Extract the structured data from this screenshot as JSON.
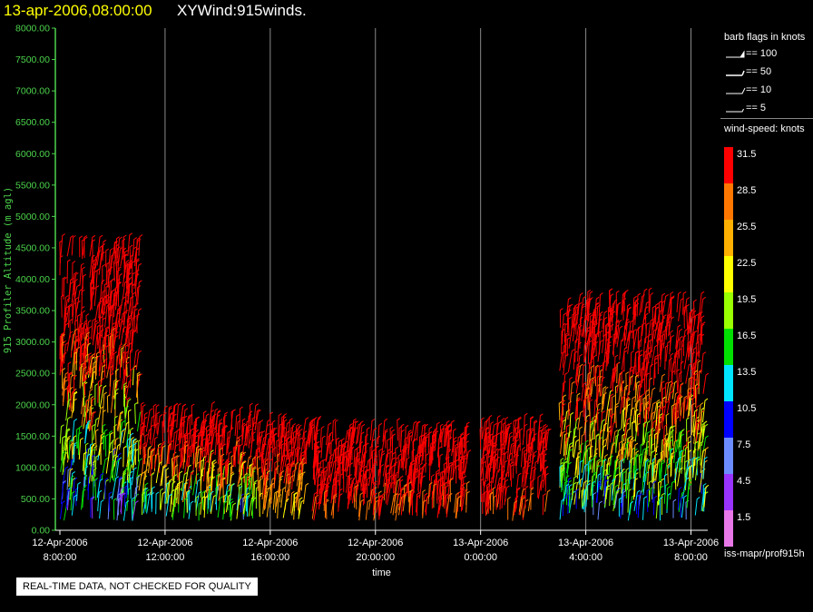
{
  "header": {
    "date": "13-apr-2006,08:00:00",
    "name": "XYWind:915winds."
  },
  "colors": {
    "axis": "#4cd44c",
    "grid": "#8a8a8a",
    "speed_bins": [
      "#e877e8",
      "#9933ff",
      "#6b8cff",
      "#0000ff",
      "#00e5ff",
      "#00e000",
      "#9aff00",
      "#ffff00",
      "#ffb000",
      "#ff7700",
      "#ff0000"
    ]
  },
  "legend": {
    "flags_title": "barb flags in knots",
    "flags": [
      {
        "label": "== 100",
        "icon": "barb-flag-icon"
      },
      {
        "label": "== 50",
        "icon": "barb-pennant-icon"
      },
      {
        "label": "== 10",
        "icon": "barb-full-icon"
      },
      {
        "label": "== 5",
        "icon": "barb-half-icon"
      }
    ],
    "speed_title": "wind-speed: knots",
    "speed_labels": [
      "31.5",
      "28.5",
      "25.5",
      "22.5",
      "19.5",
      "16.5",
      "13.5",
      "10.5",
      "7.5",
      "4.5",
      "1.5"
    ]
  },
  "footer": {
    "path": "iss-mapr/prof915h",
    "notice": "REAL-TIME DATA, NOT CHECKED FOR QUALITY"
  },
  "chart_data": {
    "type": "scatter",
    "title": "XYWind:915winds.",
    "xlabel": "time",
    "ylabel": "915 Profiler Altitude (m agl)",
    "ylim": [
      0,
      8000
    ],
    "yticks": [
      "0.00",
      "500.00",
      "1000.00",
      "1500.00",
      "2000.00",
      "2500.00",
      "3000.00",
      "3500.00",
      "4000.00",
      "4500.00",
      "5000.00",
      "5500.00",
      "6000.00",
      "6500.00",
      "7000.00",
      "7500.00",
      "8000.00"
    ],
    "xticks": [
      {
        "date": "12-Apr-2006",
        "time": "8:00:00"
      },
      {
        "date": "12-Apr-2006",
        "time": "12:00:00"
      },
      {
        "date": "12-Apr-2006",
        "time": "16:00:00"
      },
      {
        "date": "12-Apr-2006",
        "time": "20:00:00"
      },
      {
        "date": "13-Apr-2006",
        "time": "0:00:00"
      },
      {
        "date": "13-Apr-2006",
        "time": "4:00:00"
      },
      {
        "date": "13-Apr-2006",
        "time": "8:00:00"
      }
    ],
    "xlim": [
      "12-Apr-2006 8:00:00",
      "13-Apr-2006 8:30:00"
    ],
    "grid": "vertical lines at each time tick",
    "series": [
      {
        "name": "wind-speed: knots",
        "approximate_data_regions": [
          {
            "from": "12-Apr-2006 8:00:00",
            "to": "12-Apr-2006 11:00:00",
            "altitude_m": [
              0,
              4400
            ],
            "speed_range_knots": [
              1.5,
              31.5
            ]
          },
          {
            "from": "12-Apr-2006 11:00:00",
            "to": "12-Apr-2006 15:30:00",
            "altitude_m": [
              0,
              1700
            ],
            "speed_range_knots": [
              4.5,
              31.5
            ]
          },
          {
            "from": "12-Apr-2006 15:30:00",
            "to": "12-Apr-2006 17:30:00",
            "altitude_m": [
              0,
              1500
            ],
            "speed_range_knots": [
              19.5,
              31.5
            ]
          },
          {
            "from": "12-Apr-2006 17:30:00",
            "to": "12-Apr-2006 23:30:00",
            "altitude_m": [
              0,
              1450
            ],
            "speed_range_knots": [
              28.5,
              31.5
            ]
          },
          {
            "from": "13-Apr-2006 0:00:00",
            "to": "13-Apr-2006 2:30:00",
            "altitude_m": [
              0,
              1500
            ],
            "speed_range_knots": [
              28.5,
              31.5
            ]
          },
          {
            "from": "13-Apr-2006 3:00:00",
            "to": "13-Apr-2006 8:30:00",
            "altitude_m": [
              0,
              3500
            ],
            "speed_range_knots": [
              4.5,
              31.5
            ]
          }
        ]
      }
    ]
  }
}
